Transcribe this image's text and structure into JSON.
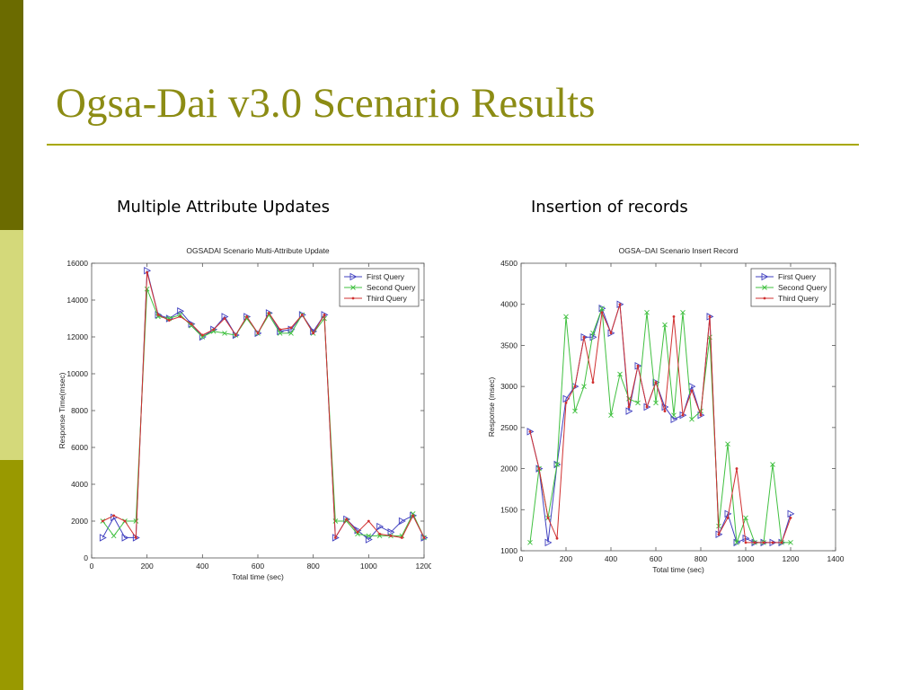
{
  "slide": {
    "title": "Ogsa-Dai v3.0 Scenario Results",
    "captions": [
      "Multiple Attribute Updates",
      "Insertion of records"
    ]
  },
  "colors": {
    "sidebar_dark": "#6b6b00",
    "sidebar_light": "#d4d97a",
    "sidebar_mid": "#999900",
    "title": "#8c8c14",
    "rule": "#a8a800"
  },
  "chart_data": [
    {
      "type": "line",
      "title": "OGSADAI Scenario Multi-Attribute Update",
      "xlabel": "Total time (sec)",
      "ylabel": "Response Time(msec)",
      "xlim": [
        0,
        1200
      ],
      "ylim": [
        0,
        16000
      ],
      "xticks": [
        0,
        200,
        400,
        600,
        800,
        1000,
        1200
      ],
      "yticks": [
        0,
        2000,
        4000,
        6000,
        8000,
        10000,
        12000,
        14000,
        16000
      ],
      "grid": false,
      "legend_position": "top-right",
      "x": [
        40,
        80,
        120,
        160,
        200,
        240,
        280,
        320,
        360,
        400,
        440,
        480,
        520,
        560,
        600,
        640,
        680,
        720,
        760,
        800,
        840,
        880,
        920,
        960,
        1000,
        1040,
        1080,
        1120,
        1160,
        1200
      ],
      "series": [
        {
          "name": "First Query",
          "color": "#4040c0",
          "marker": "triangle-right",
          "values": [
            1100,
            2200,
            1100,
            1100,
            15600,
            13200,
            13000,
            13400,
            12700,
            12000,
            12400,
            13100,
            12100,
            13100,
            12200,
            13300,
            12300,
            12400,
            13200,
            12300,
            13200,
            1100,
            2100,
            1500,
            1000,
            1700,
            1400,
            2000,
            2300,
            1100
          ]
        },
        {
          "name": "Second Query",
          "color": "#40c040",
          "marker": "x",
          "values": [
            2000,
            1200,
            2000,
            2000,
            14600,
            13100,
            13000,
            13200,
            12600,
            12000,
            12300,
            12200,
            12100,
            13000,
            12200,
            13200,
            12200,
            12200,
            13200,
            12200,
            13000,
            2000,
            2000,
            1300,
            1200,
            1200,
            1200,
            1200,
            2400,
            1100
          ]
        },
        {
          "name": "Third Query",
          "color": "#d03030",
          "marker": "dot",
          "values": [
            2000,
            2300,
            2000,
            1100,
            15500,
            13200,
            12900,
            13100,
            12700,
            12100,
            12400,
            13000,
            12100,
            13100,
            12200,
            13300,
            12400,
            12500,
            13200,
            12200,
            13200,
            1100,
            2100,
            1400,
            2000,
            1300,
            1200,
            1100,
            2300,
            1100
          ]
        }
      ]
    },
    {
      "type": "line",
      "title": "OGSA–DAI Scenario Insert Record",
      "xlabel": "Total time (sec)",
      "ylabel": "Response (msec)",
      "xlim": [
        0,
        1400
      ],
      "ylim": [
        1000,
        4500
      ],
      "xticks": [
        0,
        200,
        400,
        600,
        800,
        1000,
        1200,
        1400
      ],
      "yticks": [
        1000,
        1500,
        2000,
        2500,
        3000,
        3500,
        4000,
        4500
      ],
      "grid": false,
      "legend_position": "top-right",
      "x": [
        40,
        80,
        120,
        160,
        200,
        240,
        280,
        320,
        360,
        400,
        440,
        480,
        520,
        560,
        600,
        640,
        680,
        720,
        760,
        800,
        840,
        880,
        920,
        960,
        1000,
        1040,
        1080,
        1120,
        1160,
        1200
      ],
      "series": [
        {
          "name": "First Query",
          "color": "#4040c0",
          "marker": "triangle-right",
          "values": [
            2450,
            2000,
            1100,
            2050,
            2850,
            3000,
            3600,
            3600,
            3950,
            3650,
            4000,
            2700,
            3250,
            2750,
            3050,
            2750,
            2600,
            2650,
            3000,
            2650,
            3850,
            1200,
            1450,
            1100,
            1150,
            1100,
            1100,
            1100,
            1100,
            1450
          ]
        },
        {
          "name": "Second Query",
          "color": "#40c040",
          "marker": "x",
          "values": [
            1100,
            2000,
            1400,
            2050,
            3850,
            2700,
            3000,
            3650,
            3950,
            2650,
            3150,
            2850,
            2800,
            3900,
            2800,
            3750,
            2650,
            3900,
            2600,
            2700,
            3600,
            1300,
            2300,
            1100,
            1400,
            1100,
            1100,
            2050,
            1100,
            1100
          ]
        },
        {
          "name": "Third Query",
          "color": "#d03030",
          "marker": "dot",
          "values": [
            2450,
            2000,
            1400,
            1150,
            2800,
            3000,
            3600,
            3050,
            3900,
            3650,
            4000,
            2750,
            3250,
            2750,
            3050,
            2700,
            3850,
            2650,
            2950,
            2650,
            3850,
            1200,
            1400,
            2000,
            1100,
            1100,
            1100,
            1100,
            1100,
            1400
          ]
        }
      ]
    }
  ]
}
